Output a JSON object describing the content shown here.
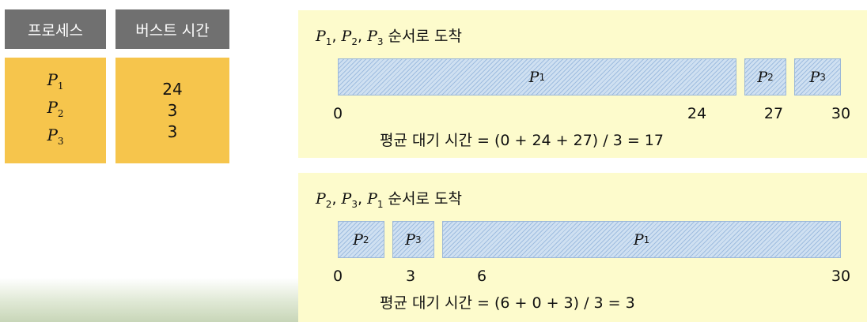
{
  "table": {
    "headers": [
      "프로세스",
      "버스트 시간"
    ],
    "rows": [
      {
        "process": "P",
        "sub": "1",
        "burst": "24"
      },
      {
        "process": "P",
        "sub": "2",
        "burst": "3"
      },
      {
        "process": "P",
        "sub": "3",
        "burst": "3"
      }
    ]
  },
  "scenario1": {
    "title_suffix": "순서로 도착",
    "order": [
      {
        "label": "P",
        "sub": "1"
      },
      {
        "label": "P",
        "sub": "2"
      },
      {
        "label": "P",
        "sub": "3"
      }
    ],
    "segments": [
      {
        "label": "P",
        "sub": "1",
        "start": 0,
        "end": 24
      },
      {
        "label": "P",
        "sub": "2",
        "start": 24,
        "end": 27
      },
      {
        "label": "P",
        "sub": "3",
        "start": 27,
        "end": 30
      }
    ],
    "ticks": [
      "0",
      "24",
      "27",
      "30"
    ],
    "average": "평균 대기 시간 = (0 + 24 + 27) / 3 = 17"
  },
  "scenario2": {
    "title_suffix": "순서로 도착",
    "order": [
      {
        "label": "P",
        "sub": "2"
      },
      {
        "label": "P",
        "sub": "3"
      },
      {
        "label": "P",
        "sub": "1"
      }
    ],
    "segments": [
      {
        "label": "P",
        "sub": "2",
        "start": 0,
        "end": 3
      },
      {
        "label": "P",
        "sub": "3",
        "start": 3,
        "end": 6
      },
      {
        "label": "P",
        "sub": "1",
        "start": 6,
        "end": 30
      }
    ],
    "ticks": [
      "0",
      "3",
      "6",
      "30"
    ],
    "average": "평균 대기 시간 = (6 + 0 + 3) / 3 = 3"
  },
  "colors": {
    "table_header": "#707070",
    "table_body": "#f6c54c",
    "panel_background": "#fdfbcc",
    "bar_fill": "#cfe0f1"
  }
}
